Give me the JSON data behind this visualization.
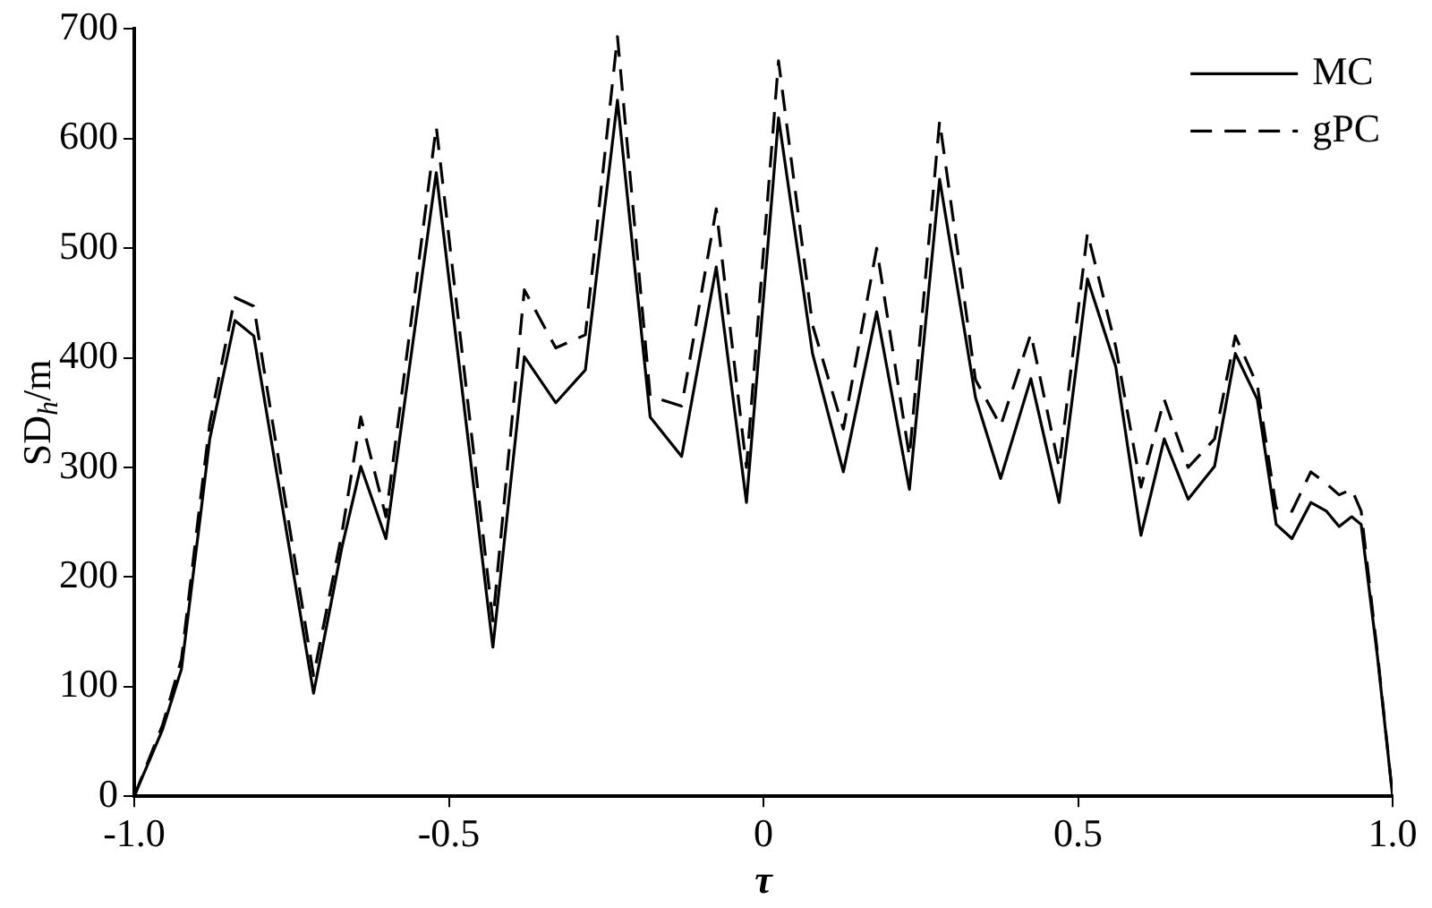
{
  "chart_data": {
    "type": "line",
    "xlabel": "τ",
    "ylabel": "SD$_{h}$/m",
    "xlim": [
      -1,
      1
    ],
    "xticks": [
      {
        "value": -1,
        "label": "-1.0"
      },
      {
        "value": -0.5,
        "label": "-0.5"
      },
      0,
      {
        "value": 0.5,
        "label": "0.5"
      },
      {
        "value": 1,
        "label": "1.0"
      }
    ],
    "ylim": [
      0,
      700
    ],
    "yticks": [
      0,
      100,
      200,
      300,
      400,
      500,
      600,
      700
    ],
    "x": [
      -1,
      -0.955,
      -0.925,
      -0.895,
      -0.88,
      -0.84,
      -0.81,
      -0.715,
      -0.67,
      -0.64,
      -0.6,
      -0.52,
      -0.43,
      -0.38,
      -0.33,
      -0.283,
      -0.232,
      -0.18,
      -0.13,
      -0.075,
      -0.027,
      0.024,
      0.078,
      0.127,
      0.18,
      0.232,
      0.28,
      0.337,
      0.377,
      0.425,
      0.47,
      0.515,
      0.56,
      0.6,
      0.637,
      0.675,
      0.717,
      0.75,
      0.785,
      0.815,
      0.84,
      0.87,
      0.895,
      0.915,
      0.935,
      0.95,
      0.976,
      1
    ],
    "series": [
      {
        "name": "MC",
        "color": "#000000",
        "line_style": "solid",
        "values": [
          0,
          61,
          116,
          255,
          326,
          434,
          420,
          94,
          227,
          301,
          235,
          569,
          136,
          401,
          359,
          389,
          635,
          346,
          310,
          483,
          268,
          619,
          404,
          296,
          442,
          280,
          563,
          364,
          290,
          381,
          268,
          472,
          392,
          238,
          326,
          271,
          301,
          404,
          362,
          248,
          235,
          268,
          260,
          246,
          255,
          248,
          127,
          0
        ]
      },
      {
        "name": "gPC",
        "color": "#000000",
        "line_style": "dashed",
        "values": [
          0,
          65,
          125,
          270,
          340,
          455,
          447,
          110,
          240,
          346,
          255,
          611,
          160,
          462,
          409,
          421,
          693,
          365,
          356,
          536,
          300,
          671,
          430,
          335,
          500,
          310,
          616,
          380,
          338,
          422,
          300,
          514,
          410,
          282,
          362,
          300,
          326,
          420,
          375,
          263,
          260,
          296,
          285,
          275,
          280,
          260,
          130,
          0
        ]
      }
    ],
    "grid": false,
    "legend": "top right",
    "marker": "none"
  }
}
